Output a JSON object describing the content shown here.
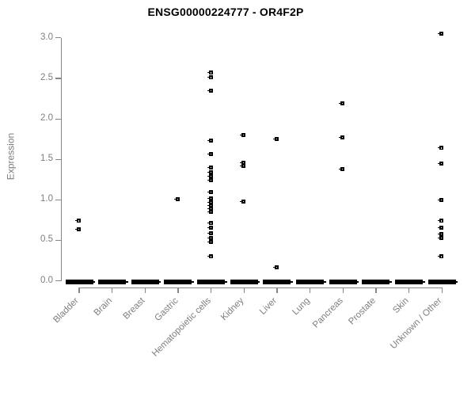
{
  "chart_data": {
    "type": "scatter",
    "title": "ENSG00000224777 - OR4F2P",
    "xlabel": "",
    "ylabel": "Expression",
    "ylim": [
      0.0,
      3.0
    ],
    "yticks": [
      "0.0",
      "0.5",
      "1.0",
      "1.5",
      "2.0",
      "2.5",
      "3.0"
    ],
    "grid": false,
    "legend": false,
    "marker": "open-square",
    "point_color": "#000000",
    "axis_color": "#868686",
    "label_color": "#7e7e7e",
    "categories": [
      "Bladder",
      "Brain",
      "Breast",
      "Gastric",
      "Hematopoietic cells",
      "Kidney",
      "Liver",
      "Lung",
      "Pancreas",
      "Prostate",
      "Skin",
      "Unknown / Other"
    ],
    "groups": [
      {
        "label": "Bladder",
        "values": [
          0.74,
          0.64
        ],
        "zero_cluster": true
      },
      {
        "label": "Brain",
        "values": [],
        "zero_cluster": true
      },
      {
        "label": "Breast",
        "values": [],
        "zero_cluster": true
      },
      {
        "label": "Gastric",
        "values": [
          1.01
        ],
        "zero_cluster": true
      },
      {
        "label": "Hematopoietic cells",
        "values": [
          2.57,
          2.51,
          2.35,
          1.73,
          1.57,
          1.4,
          1.34,
          1.29,
          1.24,
          1.1,
          1.02,
          0.97,
          0.93,
          0.89,
          0.85,
          0.71,
          0.66,
          0.59,
          0.53,
          0.48,
          0.3
        ],
        "zero_cluster": true
      },
      {
        "label": "Kidney",
        "values": [
          1.8,
          1.46,
          1.42,
          0.98
        ],
        "zero_cluster": true
      },
      {
        "label": "Liver",
        "values": [
          1.75,
          0.17
        ],
        "zero_cluster": true
      },
      {
        "label": "Lung",
        "values": [],
        "zero_cluster": true
      },
      {
        "label": "Pancreas",
        "values": [
          2.19,
          1.77,
          1.38
        ],
        "zero_cluster": true
      },
      {
        "label": "Prostate",
        "values": [],
        "zero_cluster": true
      },
      {
        "label": "Skin",
        "values": [],
        "zero_cluster": true
      },
      {
        "label": "Unknown / Other",
        "values": [
          3.05,
          1.64,
          1.45,
          1.0,
          0.74,
          0.66,
          0.58,
          0.53,
          0.3
        ],
        "zero_cluster": true
      }
    ]
  }
}
